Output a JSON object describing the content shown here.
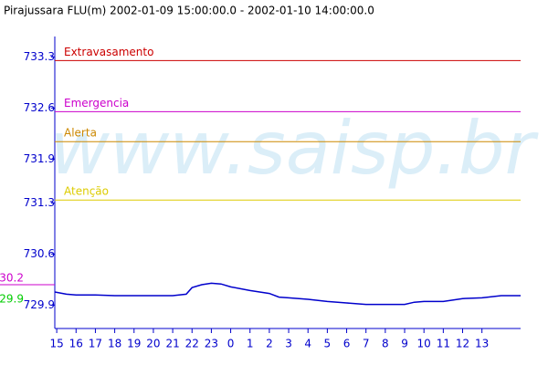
{
  "chart_data": {
    "type": "line",
    "title": "Pirajussara FLU(m) 2002-01-09 15:00:00.0 - 2002-01-10 14:00:00.0",
    "watermark": "www.saisp.br",
    "x": [
      -0.1,
      0.5,
      1,
      2,
      3,
      4,
      5,
      5.5,
      6,
      6.7,
      7,
      7.5,
      8,
      8.5,
      9,
      10,
      11,
      11.5,
      12,
      13,
      14,
      15,
      16,
      17,
      18,
      18.5,
      19,
      20,
      21,
      22,
      23,
      24
    ],
    "series": [
      {
        "color": "#0000cc",
        "values": [
          730.08,
          730.05,
          730.04,
          730.04,
          730.03,
          730.03,
          730.03,
          730.03,
          730.03,
          730.05,
          730.14,
          730.18,
          730.2,
          730.19,
          730.15,
          730.1,
          730.06,
          730.01,
          730.0,
          729.98,
          729.95,
          729.93,
          729.91,
          729.91,
          729.91,
          729.94,
          729.95,
          729.95,
          729.99,
          730.0,
          730.03,
          730.03
        ]
      }
    ],
    "thresholds": [
      {
        "label": "Extravasamento",
        "value": 733.25,
        "color": "#cc0000"
      },
      {
        "label": "Emergencia",
        "value": 732.55,
        "color": "#cc00cc"
      },
      {
        "label": "Alerta",
        "value": 732.14,
        "color": "#cc8800"
      },
      {
        "label": "Atenção",
        "value": 731.34,
        "color": "#ddcc00"
      }
    ],
    "side_labels": [
      {
        "label": "30.2",
        "color": "#cc00cc"
      },
      {
        "label": "29.9",
        "color": "#00cc00"
      }
    ],
    "xlim": [
      -0.1,
      24
    ],
    "ylim": [
      729.58,
      733.58
    ],
    "yticks": [
      733.3,
      732.6,
      731.9,
      731.3,
      730.6,
      729.9
    ],
    "xticks": [
      {
        "value": 0,
        "label": "15"
      },
      {
        "value": 1,
        "label": "16"
      },
      {
        "value": 2,
        "label": "17"
      },
      {
        "value": 3,
        "label": "18"
      },
      {
        "value": 4,
        "label": "19"
      },
      {
        "value": 5,
        "label": "20"
      },
      {
        "value": 6,
        "label": "21"
      },
      {
        "value": 7,
        "label": "22"
      },
      {
        "value": 8,
        "label": "23"
      },
      {
        "value": 9,
        "label": "0"
      },
      {
        "value": 10,
        "label": "1"
      },
      {
        "value": 11,
        "label": "2"
      },
      {
        "value": 12,
        "label": "3"
      },
      {
        "value": 13,
        "label": "4"
      },
      {
        "value": 14,
        "label": "5"
      },
      {
        "value": 15,
        "label": "6"
      },
      {
        "value": 16,
        "label": "7"
      },
      {
        "value": 17,
        "label": "8"
      },
      {
        "value": 18,
        "label": "9"
      },
      {
        "value": 19,
        "label": "10"
      },
      {
        "value": 20,
        "label": "11"
      },
      {
        "value": 21,
        "label": "12"
      },
      {
        "value": 22,
        "label": "13"
      }
    ]
  }
}
